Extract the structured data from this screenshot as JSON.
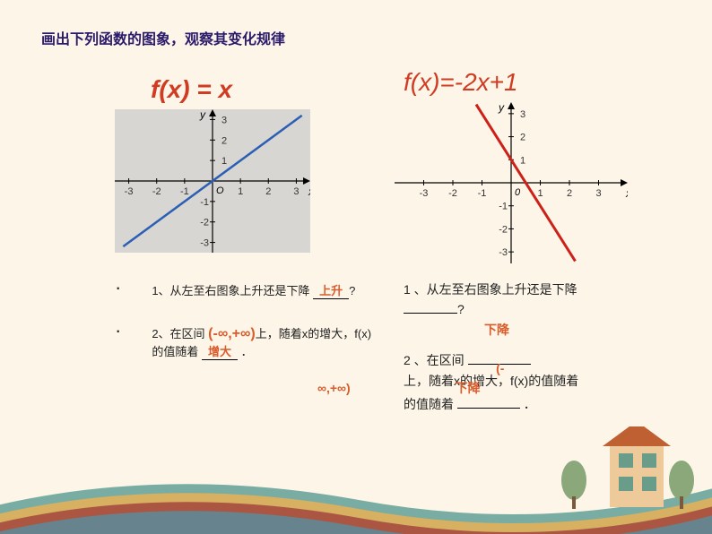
{
  "header": "画出下列函数的图象，观察其变化规律",
  "left": {
    "title": "f(x) = x",
    "chart": {
      "type": "line",
      "xlim": [
        -3.5,
        3.5
      ],
      "ylim": [
        -3.5,
        3.5
      ],
      "xticks": [
        -3,
        -2,
        -1,
        1,
        2,
        3
      ],
      "yticks": [
        -3,
        -2,
        -1,
        1,
        2,
        3
      ],
      "line_color": "#2b5fb4",
      "line_width": 2.5,
      "points": [
        [
          -3.2,
          -3.2
        ],
        [
          3.2,
          3.2
        ]
      ],
      "bg": "#d8d6d2",
      "axis_label_x": "x",
      "axis_label_y": "y",
      "origin_label": "O"
    },
    "q1_pre": "1、从左至右图象上升还是下降 ",
    "q1_answer": "上升",
    "q1_suf": "?",
    "q2_pre": "2、在区间 ",
    "q2_answer": "(-∞,+∞)",
    "q2_suf": "上，随着x的增大，f(x)的值随着 ",
    "q2_answer2": "增大",
    "q2_end": " ．"
  },
  "right": {
    "title": "f(x)=-2x+1",
    "chart": {
      "type": "line",
      "xlim": [
        -4,
        4
      ],
      "ylim": [
        -3.5,
        3.5
      ],
      "xticks": [
        -3,
        -2,
        -1,
        1,
        2,
        3
      ],
      "yticks": [
        -3,
        -2,
        -1,
        1,
        2,
        3
      ],
      "line_color": "#cc2118",
      "line_width": 3,
      "points": [
        [
          -1.2,
          3.4
        ],
        [
          2.2,
          -3.4
        ]
      ],
      "bg": "#fcf5e8",
      "axis_label_x": "x",
      "axis_label_y": "y",
      "origin_label": "0"
    },
    "q1_pre": "1 、从左至右图象上升还是下降 ",
    "q1_answer": "下降",
    "q1_suf": "?",
    "q2_pre": "2 、在区间 ",
    "q2_answer": "(-∞,+∞)",
    "q2_suf": " 上，随着x的增大，f(x)的值随着 ",
    "q2_answer2": "下降",
    "q2_end": " ．"
  },
  "decor": {
    "c1": "#6aa59b",
    "c2": "#e2b05a",
    "c3": "#a64c3f",
    "c4": "#5f8a97",
    "house": "#eec99a",
    "roof": "#bf6032",
    "window": "#6a9c8a",
    "tree": "#8aa87a"
  }
}
